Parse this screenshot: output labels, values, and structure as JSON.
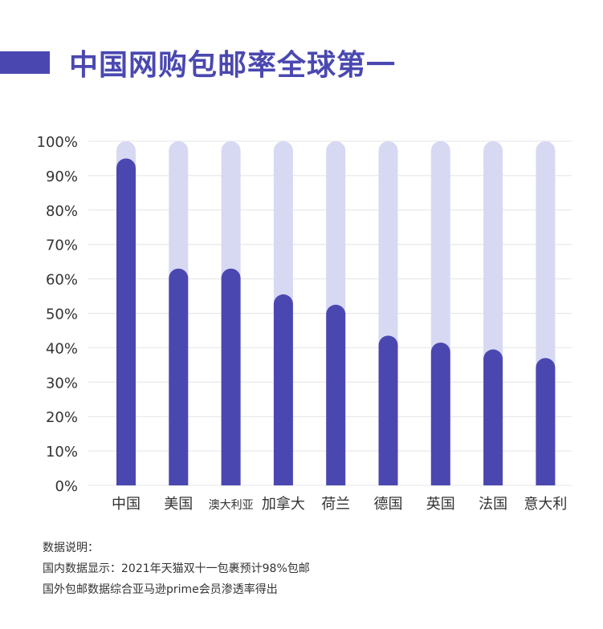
{
  "title": "中国网购包邮率全球第一",
  "chart_data": {
    "type": "bar",
    "categories": [
      "中国",
      "美国",
      "澳大利亚",
      "加拿大",
      "荷兰",
      "德国",
      "英国",
      "法国",
      "意大利"
    ],
    "values": [
      95,
      63,
      63,
      55.5,
      52.5,
      43.5,
      41.5,
      39.5,
      37
    ],
    "ylim": [
      0,
      100
    ],
    "yticks": [
      "0%",
      "10%",
      "20%",
      "30%",
      "40%",
      "50%",
      "60%",
      "70%",
      "80%",
      "90%",
      "100%"
    ],
    "background_value": 100,
    "grid": true,
    "colors": {
      "bar": "#4a48b0",
      "track": "#d7d9f3",
      "grid": "#e4e4e4",
      "tick": "#333333"
    }
  },
  "notes": {
    "heading": "数据说明：",
    "line1": "国内数据显示：2021年天猫双十一包裹预计98%包邮",
    "line2": "国外包邮数据综合亚马逊prime会员渗透率得出"
  }
}
